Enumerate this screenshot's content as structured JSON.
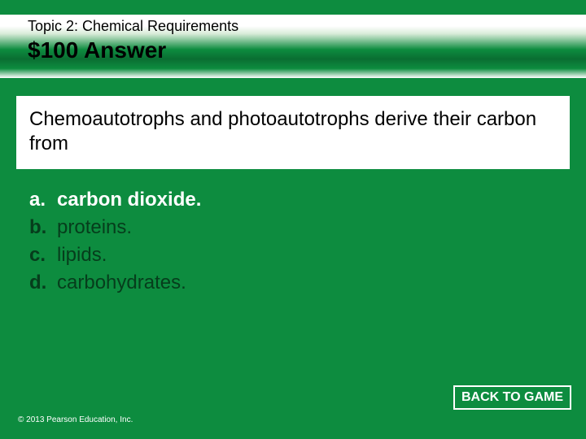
{
  "colors": {
    "slide_bg": "#0d8c3f",
    "box_bg": "#ffffff",
    "text_black": "#000000",
    "text_white": "#ffffff",
    "text_dark_green": "#063d1c",
    "button_border": "#ffffff",
    "button_bg": "#0d8c3f"
  },
  "header": {
    "topic": "Topic 2: Chemical Requirements",
    "value_line": "$100 Answer",
    "topic_fontsize": 18,
    "value_fontsize": 28
  },
  "question": {
    "text": "Chemoautotrophs and photoautotrophs derive their carbon from",
    "fontsize": 24
  },
  "options": [
    {
      "letter": "a.",
      "text": "carbon dioxide.",
      "correct": true
    },
    {
      "letter": "b.",
      "text": "proteins.",
      "correct": false
    },
    {
      "letter": "c.",
      "text": "lipids.",
      "correct": false
    },
    {
      "letter": "d.",
      "text": "carbohydrates.",
      "correct": false
    }
  ],
  "option_fontsize": 24,
  "footer": {
    "copyright": "© 2013 Pearson Education, Inc.",
    "button_label": "BACK TO GAME"
  }
}
